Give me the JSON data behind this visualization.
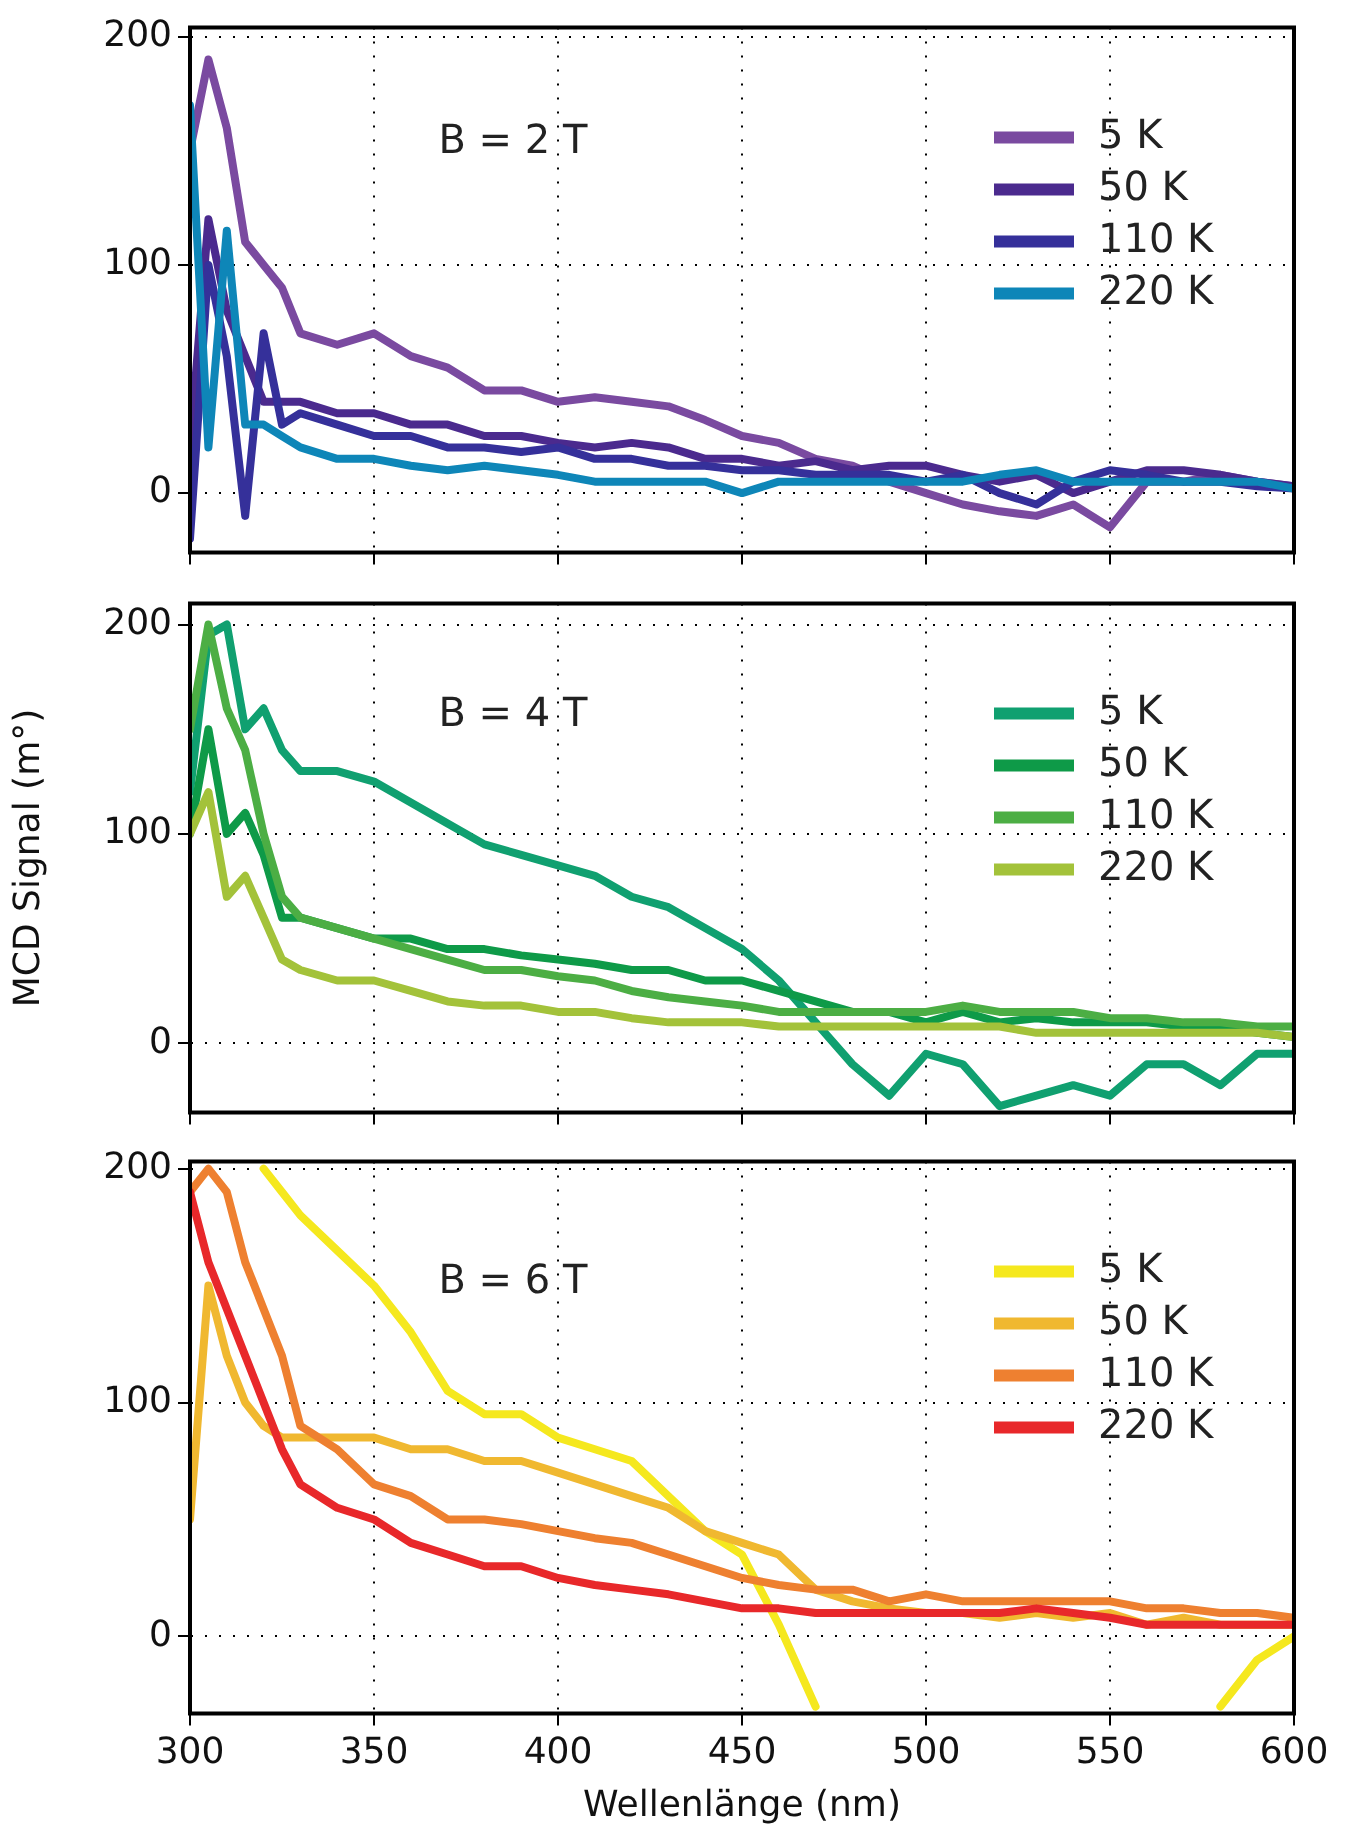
{
  "chart_data": [
    {
      "type": "line",
      "annotations": [
        "B = 2 T"
      ],
      "x": [
        300,
        305,
        310,
        315,
        320,
        325,
        330,
        340,
        350,
        360,
        370,
        380,
        390,
        400,
        410,
        420,
        430,
        440,
        450,
        460,
        470,
        480,
        490,
        500,
        510,
        520,
        530,
        540,
        550,
        560,
        570,
        580,
        590,
        600
      ],
      "xlim": [
        300,
        600
      ],
      "xticks": [
        300,
        350,
        400,
        450,
        500,
        550,
        600
      ],
      "ylim": [
        -26,
        204
      ],
      "yticks": [
        0,
        100,
        200
      ],
      "grid": true,
      "legend": "top right",
      "tick_labels": "y",
      "series": [
        {
          "name": "5 K",
          "color": "#7a4aa0",
          "values": [
            150,
            190,
            160,
            110,
            100,
            90,
            70,
            65,
            70,
            60,
            55,
            45,
            45,
            40,
            42,
            40,
            38,
            32,
            25,
            22,
            15,
            12,
            5,
            0,
            -5,
            -8,
            -10,
            -5,
            -15,
            5,
            5,
            8,
            5,
            3
          ]
        },
        {
          "name": "50 K",
          "color": "#4b2a8e",
          "values": [
            20,
            120,
            80,
            60,
            40,
            40,
            40,
            35,
            35,
            30,
            30,
            25,
            25,
            22,
            20,
            22,
            20,
            15,
            15,
            12,
            14,
            10,
            12,
            12,
            8,
            5,
            8,
            0,
            5,
            10,
            10,
            8,
            5,
            3
          ]
        },
        {
          "name": "110 K",
          "color": "#35309a",
          "values": [
            -20,
            100,
            60,
            -10,
            70,
            30,
            35,
            30,
            25,
            25,
            20,
            20,
            18,
            20,
            15,
            15,
            12,
            12,
            10,
            10,
            8,
            8,
            8,
            5,
            8,
            0,
            -5,
            5,
            10,
            8,
            5,
            5,
            3,
            2
          ]
        },
        {
          "name": "220 K",
          "color": "#0e86b8",
          "values": [
            170,
            20,
            115,
            30,
            30,
            25,
            20,
            15,
            15,
            12,
            10,
            12,
            10,
            8,
            5,
            5,
            5,
            5,
            0,
            5,
            5,
            5,
            5,
            5,
            5,
            8,
            10,
            5,
            5,
            5,
            5,
            5,
            5,
            2
          ]
        }
      ]
    },
    {
      "type": "line",
      "annotations": [
        "B = 4 T"
      ],
      "ylabel": "MCD Signal (m°)",
      "x": [
        300,
        305,
        310,
        315,
        320,
        325,
        330,
        340,
        350,
        360,
        370,
        380,
        390,
        400,
        410,
        420,
        430,
        440,
        450,
        460,
        470,
        480,
        490,
        500,
        510,
        520,
        530,
        540,
        550,
        560,
        570,
        580,
        590,
        600
      ],
      "xlim": [
        300,
        600
      ],
      "xticks": [
        300,
        350,
        400,
        450,
        500,
        550,
        600
      ],
      "ylim": [
        -33,
        210
      ],
      "yticks": [
        0,
        100,
        200
      ],
      "grid": true,
      "legend": "top right",
      "tick_labels": "y",
      "series": [
        {
          "name": "5 K",
          "color": "#10a070",
          "values": [
            120,
            195,
            200,
            150,
            160,
            140,
            130,
            130,
            125,
            115,
            105,
            95,
            90,
            85,
            80,
            70,
            65,
            55,
            45,
            30,
            10,
            -10,
            -25,
            -5,
            -10,
            -30,
            -25,
            -20,
            -25,
            -10,
            -10,
            -20,
            -5,
            -5
          ]
        },
        {
          "name": "50 K",
          "color": "#0e9a48",
          "values": [
            100,
            150,
            100,
            110,
            90,
            60,
            60,
            55,
            50,
            50,
            45,
            45,
            42,
            40,
            38,
            35,
            35,
            30,
            30,
            25,
            20,
            15,
            15,
            10,
            15,
            10,
            12,
            10,
            10,
            10,
            8,
            8,
            5,
            3
          ]
        },
        {
          "name": "110 K",
          "color": "#4cae44",
          "values": [
            150,
            200,
            160,
            140,
            100,
            70,
            60,
            55,
            50,
            45,
            40,
            35,
            35,
            32,
            30,
            25,
            22,
            20,
            18,
            15,
            15,
            15,
            15,
            15,
            18,
            15,
            15,
            15,
            12,
            12,
            10,
            10,
            8,
            8
          ]
        },
        {
          "name": "220 K",
          "color": "#a3c23a",
          "values": [
            100,
            120,
            70,
            80,
            60,
            40,
            35,
            30,
            30,
            25,
            20,
            18,
            18,
            15,
            15,
            12,
            10,
            10,
            10,
            8,
            8,
            8,
            8,
            8,
            8,
            8,
            5,
            5,
            5,
            5,
            5,
            5,
            5,
            3
          ]
        }
      ]
    },
    {
      "type": "line",
      "annotations": [
        "B = 6 T"
      ],
      "xlabel": "Wellenlänge (nm)",
      "x": [
        300,
        305,
        310,
        315,
        320,
        325,
        330,
        340,
        350,
        360,
        370,
        380,
        390,
        400,
        410,
        420,
        430,
        440,
        450,
        460,
        470,
        480,
        490,
        500,
        510,
        520,
        530,
        540,
        550,
        560,
        570,
        580,
        590,
        600
      ],
      "xlim": [
        300,
        600
      ],
      "xticks": [
        300,
        350,
        400,
        450,
        500,
        550,
        600
      ],
      "ylim": [
        -33,
        203
      ],
      "yticks": [
        0,
        100,
        200
      ],
      "grid": true,
      "legend": "top right",
      "series": [
        {
          "name": "5 K",
          "color": "#f5e81e",
          "values": [
            null,
            null,
            null,
            null,
            200,
            190,
            180,
            165,
            150,
            130,
            105,
            95,
            95,
            85,
            80,
            75,
            60,
            45,
            35,
            5,
            -30,
            null,
            null,
            null,
            null,
            null,
            null,
            null,
            null,
            null,
            null,
            -30,
            -10,
            0
          ]
        },
        {
          "name": "50 K",
          "color": "#f0b830",
          "values": [
            50,
            150,
            120,
            100,
            90,
            85,
            85,
            85,
            85,
            80,
            80,
            75,
            75,
            70,
            65,
            60,
            55,
            45,
            40,
            35,
            20,
            15,
            12,
            10,
            10,
            8,
            10,
            8,
            10,
            5,
            8,
            5,
            5,
            5
          ]
        },
        {
          "name": "110 K",
          "color": "#ee8030",
          "values": [
            190,
            200,
            190,
            160,
            140,
            120,
            90,
            80,
            65,
            60,
            50,
            50,
            48,
            45,
            42,
            40,
            35,
            30,
            25,
            22,
            20,
            20,
            15,
            18,
            15,
            15,
            15,
            15,
            15,
            12,
            12,
            10,
            10,
            8
          ]
        },
        {
          "name": "220 K",
          "color": "#e8282a",
          "values": [
            190,
            160,
            140,
            120,
            100,
            80,
            65,
            55,
            50,
            40,
            35,
            30,
            30,
            25,
            22,
            20,
            18,
            15,
            12,
            12,
            10,
            10,
            10,
            10,
            10,
            10,
            12,
            10,
            8,
            5,
            5,
            5,
            5,
            5
          ]
        }
      ]
    }
  ]
}
